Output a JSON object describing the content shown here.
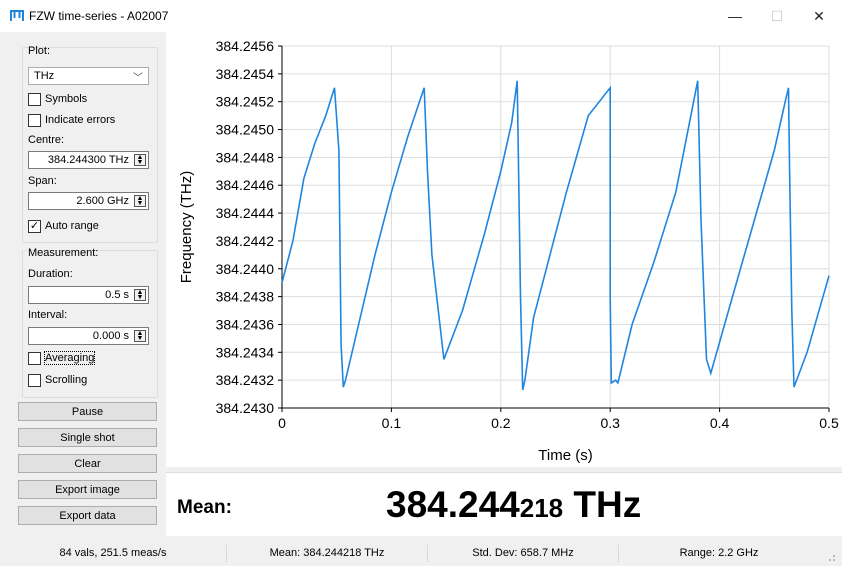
{
  "window": {
    "title": "FZW time-series - A02007",
    "minimize": "—",
    "maximize": "☐",
    "close": "✕"
  },
  "plot_group": {
    "title": "Plot:",
    "unit_select": "THz",
    "symbols_label": "Symbols",
    "symbols_checked": false,
    "indicate_errors_label": "Indicate errors",
    "indicate_errors_checked": false,
    "centre_label": "Centre:",
    "centre_value": "384.244300 THz",
    "span_label": "Span:",
    "span_value": "2.600 GHz",
    "auto_range_label": "Auto range",
    "auto_range_checked": true
  },
  "measurement_group": {
    "title": "Measurement:",
    "duration_label": "Duration:",
    "duration_value": "0.5 s",
    "interval_label": "Interval:",
    "interval_value": "0.000 s",
    "averaging_label": "Averaging",
    "averaging_checked": false,
    "scrolling_label": "Scrolling",
    "scrolling_checked": false
  },
  "buttons": {
    "pause": "Pause",
    "single_shot": "Single shot",
    "clear": "Clear",
    "export_image": "Export image",
    "export_data": "Export data"
  },
  "mean_panel": {
    "label": "Mean:",
    "value_main": "384.244",
    "value_small": "218",
    "unit": " THz"
  },
  "status": {
    "vals": "84 vals, 251.5 meas/s",
    "mean": "Mean: 384.244218 THz",
    "stddev": "Std. Dev: 658.7 MHz",
    "range": "Range: 2.2 GHz"
  },
  "colors": {
    "line": "#1f86e0",
    "grid": "#dddddd"
  },
  "chart_data": {
    "type": "line",
    "xlabel": "Time (s)",
    "ylabel": "Frequency (THz)",
    "xlim": [
      0,
      0.5
    ],
    "ylim": [
      384.243,
      384.2456
    ],
    "xticks": [
      "0",
      "0.1",
      "0.2",
      "0.3",
      "0.4",
      "0.5"
    ],
    "yticks": [
      "384.2430",
      "384.2432",
      "384.2434",
      "384.2436",
      "384.2438",
      "384.2440",
      "384.2442",
      "384.2444",
      "384.2446",
      "384.2448",
      "384.2450",
      "384.2452",
      "384.2454",
      "384.2456"
    ],
    "grid": true,
    "series": [
      {
        "x": [
          0,
          0.01,
          0.02,
          0.03,
          0.04,
          0.048,
          0.052,
          0.054,
          0.056,
          0.058,
          0.07,
          0.085,
          0.1,
          0.115,
          0.13,
          0.133,
          0.137,
          0.148,
          0.165,
          0.185,
          0.2,
          0.21,
          0.215,
          0.218,
          0.22,
          0.222,
          0.23,
          0.245,
          0.26,
          0.28,
          0.3,
          0.3,
          0.3,
          0.301,
          0.305,
          0.307,
          0.32,
          0.34,
          0.36,
          0.38,
          0.383,
          0.388,
          0.392,
          0.41,
          0.43,
          0.45,
          0.46,
          0.463,
          0.464,
          0.466,
          0.468,
          0.48,
          0.5
        ],
        "y": [
          384.2439,
          384.2442,
          384.24465,
          384.2449,
          384.2451,
          384.2453,
          384.24485,
          384.24345,
          384.24315,
          384.2432,
          384.2436,
          384.2441,
          384.24455,
          384.24495,
          384.2453,
          384.2447,
          384.2441,
          384.24335,
          384.2437,
          384.24425,
          384.2447,
          384.24505,
          384.24535,
          384.2438,
          384.24313,
          384.2432,
          384.24365,
          384.2441,
          384.24455,
          384.2451,
          384.2453,
          384.24455,
          384.2438,
          384.24318,
          384.2432,
          384.24318,
          384.2436,
          384.24405,
          384.24455,
          384.24535,
          384.24435,
          384.24335,
          384.24325,
          384.24375,
          384.2443,
          384.24485,
          384.2452,
          384.2453,
          384.2447,
          384.2437,
          384.24315,
          384.2434,
          384.24395
        ]
      }
    ]
  }
}
